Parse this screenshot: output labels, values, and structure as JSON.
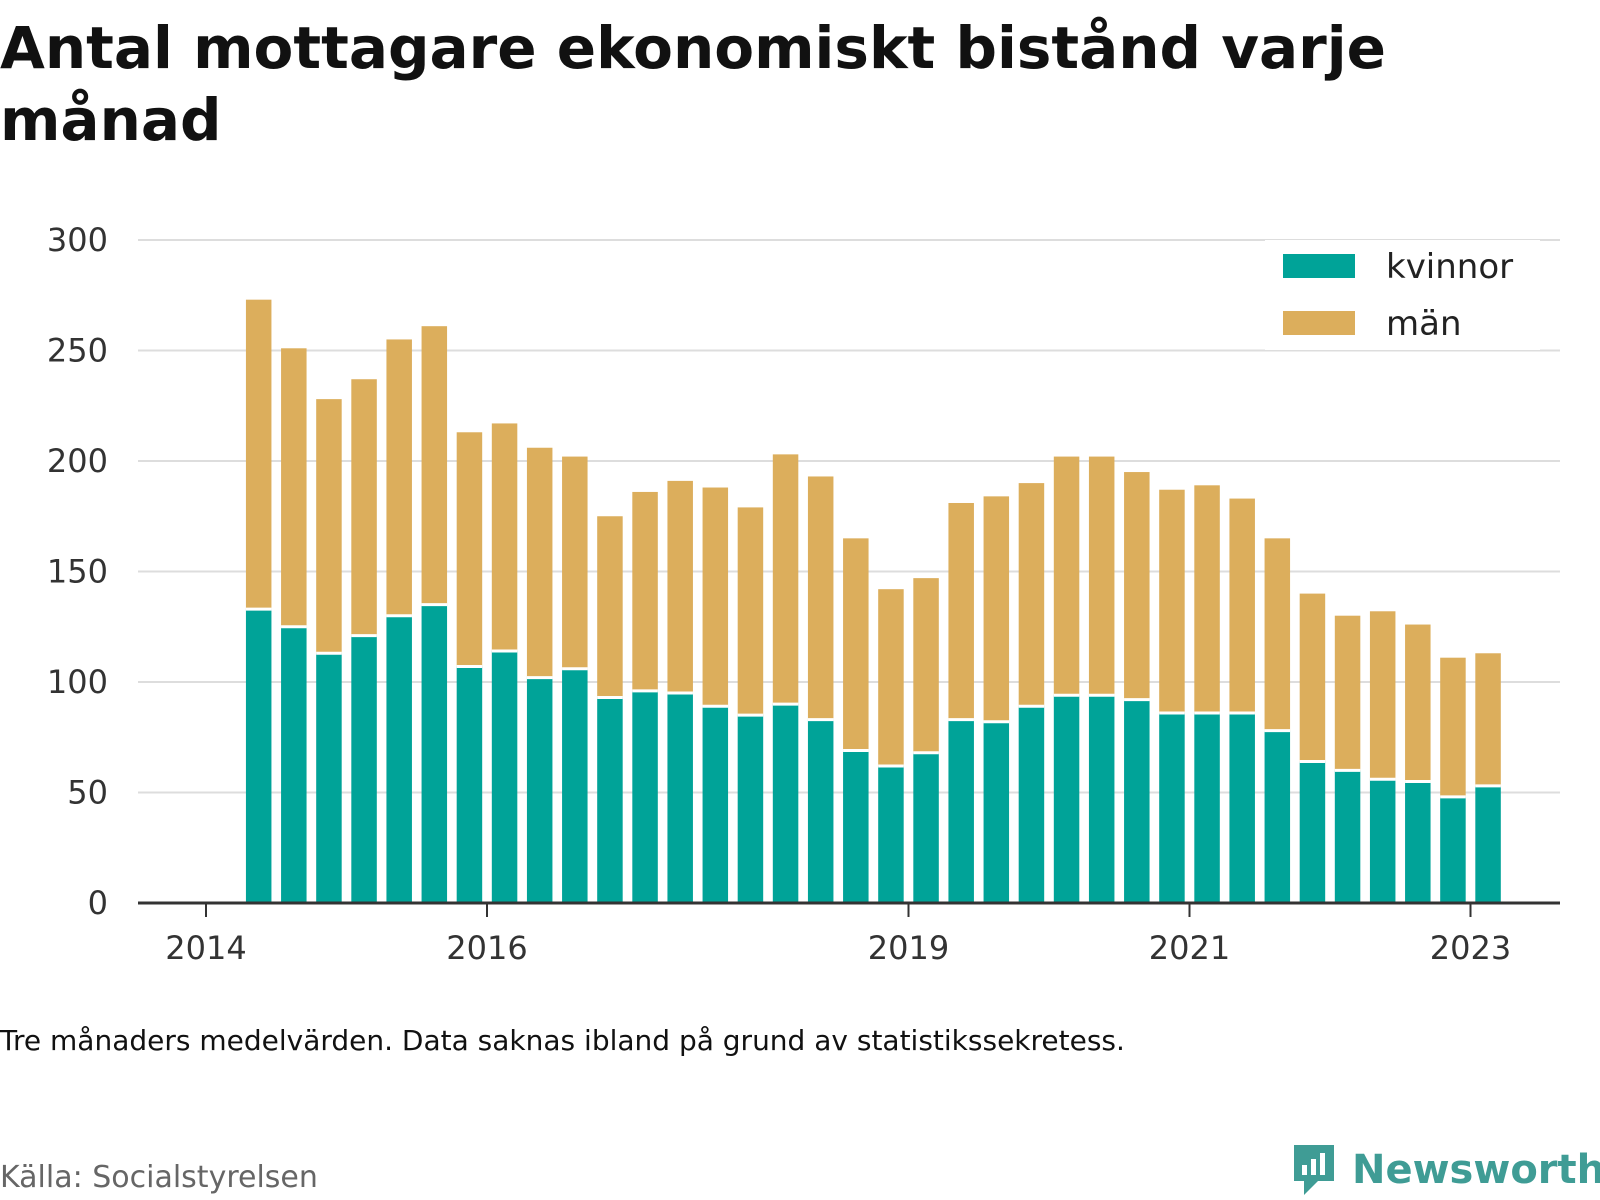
{
  "title": "Antal mottagare ekonomiskt bistånd varje månad",
  "note": "Tre månaders medelvärden. Data saknas ibland på grund av statistikssekretess.",
  "source": "Källa: Socialstyrelsen",
  "brand": "Newsworthy",
  "colors": {
    "kvinnor": "#00a398",
    "man": "#dcae5c",
    "grid": "#dddddd",
    "axis": "#333333",
    "brand": "#3f9c95"
  },
  "chart_data": {
    "type": "bar",
    "stacked": true,
    "ylim": [
      0,
      300
    ],
    "yticks": [
      0,
      50,
      100,
      150,
      200,
      250,
      300
    ],
    "grid": true,
    "legend_position": "top-right",
    "x_start": 2014,
    "x_tick_labels": [
      "2014",
      "2016",
      "2019",
      "2021",
      "2023"
    ],
    "x": [
      "2014-Q2",
      "2014-Q3",
      "2014-Q4",
      "2015-Q1",
      "2015-Q2",
      "2015-Q3",
      "2015-Q4",
      "2016-Q1",
      "2016-Q2",
      "2016-Q3",
      "2016-Q4",
      "2017-Q1",
      "2017-Q2",
      "2017-Q3",
      "2017-Q4",
      "2018-Q1",
      "2018-Q2",
      "2018-Q3",
      "2018-Q4",
      "2019-Q1",
      "2019-Q2",
      "2019-Q3",
      "2019-Q4",
      "2020-Q1",
      "2020-Q2",
      "2020-Q3",
      "2020-Q4",
      "2021-Q1",
      "2021-Q2",
      "2021-Q3",
      "2021-Q4",
      "2022-Q1",
      "2022-Q2",
      "2022-Q3",
      "2022-Q4",
      "2023-Q1",
      "2023-Q2"
    ],
    "series": [
      {
        "name": "kvinnor",
        "values": [
          133,
          125,
          113,
          121,
          130,
          135,
          107,
          114,
          102,
          106,
          93,
          96,
          95,
          89,
          85,
          90,
          83,
          69,
          62,
          68,
          83,
          82,
          89,
          94,
          94,
          92,
          86,
          86,
          86,
          78,
          64,
          60,
          56,
          55,
          48,
          53,
          null
        ]
      },
      {
        "name": "män",
        "values": [
          140,
          126,
          115,
          116,
          125,
          126,
          106,
          103,
          104,
          96,
          82,
          90,
          96,
          99,
          94,
          113,
          110,
          96,
          80,
          79,
          98,
          102,
          101,
          108,
          108,
          103,
          101,
          103,
          97,
          87,
          76,
          70,
          76,
          71,
          63,
          60,
          null
        ]
      }
    ]
  }
}
